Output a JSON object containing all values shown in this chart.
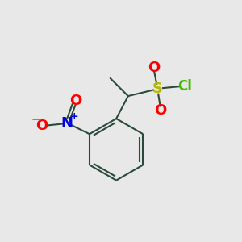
{
  "background_color": "#e8e8e8",
  "bond_color": "#2a4a3a",
  "O_color": "#ff0000",
  "N_color": "#0000dd",
  "S_color": "#b8b800",
  "Cl_color": "#44bb00",
  "figsize": [
    3.0,
    3.0
  ],
  "dpi": 100,
  "xlim": [
    0,
    10
  ],
  "ylim": [
    0,
    10
  ]
}
